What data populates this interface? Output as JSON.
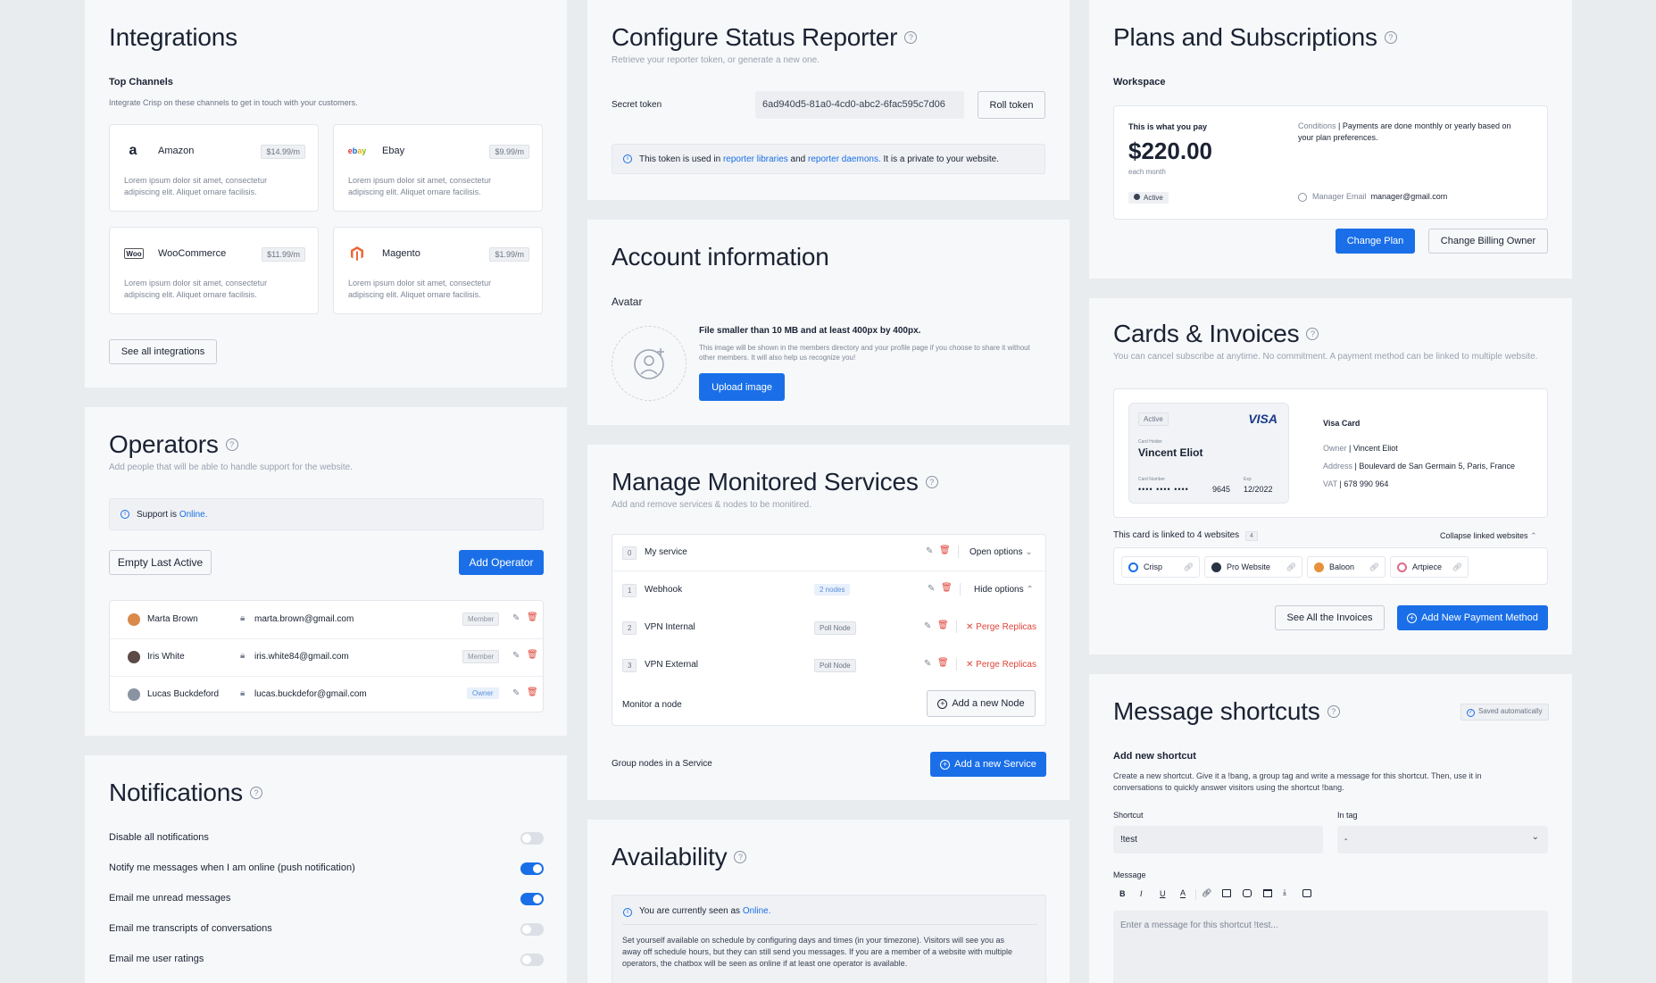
{
  "integrations": {
    "title": "Integrations",
    "section": "Top Channels",
    "section_desc": "Integrate Crisp on these channels to get in touch with your customers.",
    "items": [
      {
        "name": "Amazon",
        "price": "$14.99/m",
        "desc1": "Lorem ipsum dolor sit amet, consectetur",
        "desc2": "adipiscing elit. Aliquet ornare facilisis."
      },
      {
        "name": "Ebay",
        "price": "$9.99/m",
        "desc1": "Lorem ipsum dolor sit amet, consectetur",
        "desc2": "adipiscing elit. Aliquet ornare facilisis."
      },
      {
        "name": "WooCommerce",
        "price": "$11.99/m",
        "desc1": "Lorem ipsum dolor sit amet, consectetur",
        "desc2": "adipiscing elit. Aliquet ornare facilisis."
      },
      {
        "name": "Magento",
        "price": "$1.99/m",
        "desc1": "Lorem ipsum dolor sit amet, consectetur",
        "desc2": "adipiscing elit. Aliquet ornare facilisis."
      }
    ],
    "see_all": "See all integrations"
  },
  "operators": {
    "title": "Operators",
    "subtitle": "Add people that will be able to handle support for the website.",
    "support_prefix": "Support is",
    "support_status": "Online.",
    "empty_btn": "Empty Last Active",
    "add_btn": "Add Operator",
    "rows": [
      {
        "name": "Marta Brown",
        "email": "marta.brown@gmail.com",
        "role": "Member"
      },
      {
        "name": "Iris White",
        "email": "iris.white84@gmail.com",
        "role": "Member"
      },
      {
        "name": "Lucas Buckdeford",
        "email": "lucas.buckdefor@gmail.com",
        "role": "Owner"
      }
    ]
  },
  "notifications": {
    "title": "Notifications",
    "items": [
      {
        "label": "Disable all notifications",
        "on": false
      },
      {
        "label": "Notify me messages when I am online (push notification)",
        "on": true
      },
      {
        "label": "Email me unread messages",
        "on": true
      },
      {
        "label": "Email me transcripts of conversations",
        "on": false
      },
      {
        "label": "Email me user ratings",
        "on": false
      }
    ]
  },
  "status_reporter": {
    "title": "Configure Status Reporter",
    "subtitle": "Retrieve your reporter token, or generate a new one.",
    "secret_label": "Secret token",
    "token": "6ad940d5-81a0-4cd0-abc2-6fac595c7d06",
    "roll_btn": "Roll token",
    "info_a": "This token is used in",
    "info_link1": "reporter libraries",
    "info_and": "and",
    "info_link2": "reporter daemons.",
    "info_b": "It is a private to your website."
  },
  "account": {
    "title": "Account information",
    "avatar_label": "Avatar",
    "file_rule": "File smaller than 10 MB  and at least 400px by 400px.",
    "file_desc1": "This image will be shown in the members directory and your profile page if you choose to share it without",
    "file_desc2": "other members. It will also help us recognize you!",
    "upload_btn": "Upload image"
  },
  "monitored": {
    "title": "Manage Monitored Services",
    "subtitle": "Add and remove services & nodes to be monitired.",
    "rows": [
      {
        "idx": "0",
        "name": "My service",
        "tag": "",
        "action": "Open options",
        "action_type": "open"
      },
      {
        "idx": "1",
        "name": "Webhook",
        "tag": "2 nodes",
        "action": "Hide options",
        "action_type": "hide"
      },
      {
        "idx": "2",
        "name": "VPN Internal",
        "tag": "Poll Node",
        "action": "Perge Replicas",
        "action_type": "purge"
      },
      {
        "idx": "3",
        "name": "VPN External",
        "tag": "Poll Node",
        "action": "Perge Replicas",
        "action_type": "purge"
      }
    ],
    "monitor_label": "Monitor a node",
    "add_node_btn": "Add a new Node",
    "group_label": "Group nodes in a Service",
    "add_service_btn": "Add a new Service"
  },
  "availability": {
    "title": "Availability",
    "seen_prefix": "You are currently seen as",
    "seen_status": "Online.",
    "desc1": "Set yourself available on schedule by configuring days and times (in your timezone). Visitors will see you as",
    "desc2": "away off schedule hours, but they can still send you messages. If you are a member of a website with multiple",
    "desc3": "operators, the chatbox will be seen as online if at least one operator is available."
  },
  "plans": {
    "title": "Plans and Subscriptions",
    "workspace": "Workspace",
    "pay_label": "This is what you pay",
    "amount": "$220.00",
    "period": "each month",
    "status": "Active",
    "conditions_label": "Conditions",
    "conditions1": "Payments are done monthly or yearly based on",
    "conditions2": "your plan preferences.",
    "manager_label": "Manager Email",
    "manager_email": "manager@gmail.com",
    "change_plan_btn": "Change Plan",
    "change_owner_btn": "Change Billing Owner"
  },
  "cards": {
    "title": "Cards & Invoices",
    "subtitle": "You can cancel subscribe at anytime. No commitment. A payment method can be linked to multiple website.",
    "card_status": "Active",
    "card_brand": "VISA",
    "holder_label": "Card Holder",
    "holder": "Vincent Eliot",
    "number_label": "Card Number",
    "number_mask": "••••  ••••  ••••",
    "last4": "9645",
    "exp_label": "Exp",
    "exp": "12/2022",
    "card_type": "Visa Card",
    "owner_label": "Owner",
    "owner": "Vincent Eliot",
    "address_label": "Address",
    "address": "Boulevard de San Germain 5, Paris, France",
    "vat_label": "VAT",
    "vat": "678 990 964",
    "linked_text": "This card is linked to 4 websites",
    "linked_count": "4",
    "collapse": "Collapse linked websites",
    "websites": [
      "Crisp",
      "Pro Website",
      "Baloon",
      "Artpiece"
    ],
    "see_invoices_btn": "See All the Invoices",
    "add_method_btn": "Add New Payment Method"
  },
  "shortcuts": {
    "title": "Message shortcuts",
    "saved": "Saved automatically",
    "add_title": "Add new shortcut",
    "add_desc1": "Create a new shortcut. Give it a !bang, a group tag and write a message for this shortcut. Then, use it in",
    "add_desc2": "conversations to quickly answer visitors using the shortcut !bang.",
    "shortcut_label": "Shortcut",
    "shortcut_value": "!test",
    "tag_label": "In tag",
    "tag_value": "-",
    "message_label": "Message",
    "message_placeholder": "Enter a message for this shortcut !test..."
  },
  "colors": {
    "accent": "#1a6fe8",
    "danger": "#e0453a"
  }
}
